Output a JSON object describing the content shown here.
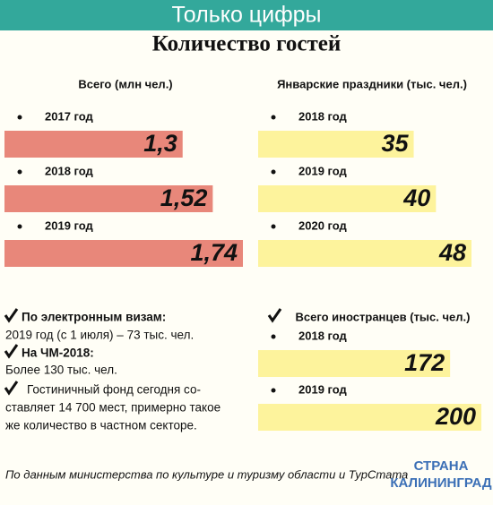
{
  "header": {
    "banner": "Только цифры",
    "title": "Количество гостей"
  },
  "chart_data": [
    {
      "type": "bar",
      "orientation": "horizontal",
      "title": "Всего (млн  чел.)",
      "categories": [
        "2017 год",
        "2018 год",
        "2019 год"
      ],
      "values": [
        1.3,
        1.52,
        1.74
      ],
      "value_labels": [
        "1,3",
        "1,52",
        "1,74"
      ],
      "color": "#e8877a"
    },
    {
      "type": "bar",
      "orientation": "horizontal",
      "title": "Январские праздники (тыс. чел.)",
      "categories": [
        "2018 год",
        "2019 год",
        "2020 год"
      ],
      "values": [
        35,
        40,
        48
      ],
      "color": "#fdf39c"
    },
    {
      "type": "bar",
      "orientation": "horizontal",
      "title": "Всего иностранцев (тыс. чел.)",
      "categories": [
        "2018 год",
        "2019 год"
      ],
      "values": [
        172,
        200
      ],
      "color": "#fdf39c"
    }
  ],
  "notes": [
    {
      "title": "По электронным визам:",
      "text": [
        "2019 год (с 1 июля) – 73 тыс. чел."
      ]
    },
    {
      "title": "На ЧМ-2018:",
      "text": [
        "Более 130 тыс. чел."
      ]
    },
    {
      "title": "Гостиничный фонд сегодня со-",
      "text": [
        "ставляет 14 700 мест, примерно такое",
        "же количество в частном секторе."
      ]
    }
  ],
  "source": "По данным министерства по культуре и туризму области и ТурСтата",
  "logo": [
    "СТРАНА",
    "КАЛИНИНГРАД"
  ]
}
